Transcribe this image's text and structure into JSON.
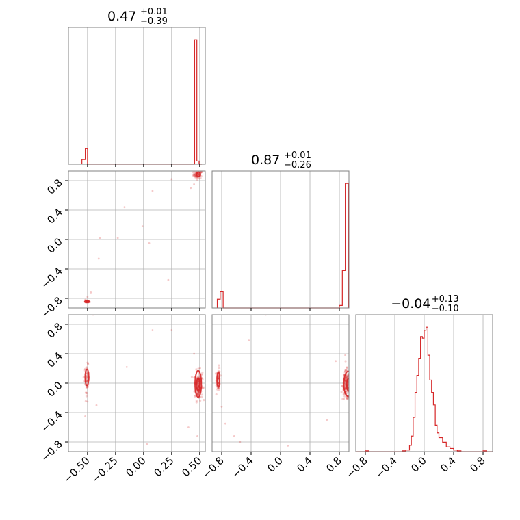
{
  "colors": {
    "series": "#d62728",
    "grid": "#b0b0b0",
    "frame": "#808080"
  },
  "chart_data": {
    "type": "corner",
    "variables": [
      "param_0",
      "param_1",
      "param_2"
    ],
    "titles": [
      {
        "value": "0.47",
        "plus": "+0.01",
        "minus": "−0.39"
      },
      {
        "value": "0.87",
        "plus": "+0.01",
        "minus": "−0.26"
      },
      {
        "value": "−0.04",
        "plus": "+0.13",
        "minus": "−0.10"
      }
    ],
    "ranges": [
      [
        -0.67,
        0.55
      ],
      [
        -0.93,
        0.93
      ],
      [
        -0.93,
        0.93
      ]
    ],
    "ticks": {
      "param_0": {
        "values": [
          -0.5,
          -0.25,
          0.0,
          0.25,
          0.5
        ],
        "labels": [
          "−0.50",
          "−0.25",
          "0.00",
          "0.25",
          "0.50"
        ]
      },
      "param_1": {
        "values": [
          -0.8,
          -0.4,
          0.0,
          0.4,
          0.8
        ],
        "labels": [
          "−0.8",
          "−0.4",
          "0.0",
          "0.4",
          "0.8"
        ]
      },
      "param_2": {
        "values": [
          -0.8,
          -0.4,
          0.0,
          0.4,
          0.8
        ],
        "labels": [
          "−0.8",
          "−0.4",
          "0.0",
          "0.4",
          "0.8"
        ]
      }
    },
    "grid": true,
    "histograms": [
      {
        "variable": "param_0",
        "edges": [
          -0.55,
          -0.52,
          -0.5,
          -0.48,
          0.43,
          0.455,
          0.475,
          0.495,
          0.52
        ],
        "counts": [
          3,
          10,
          0,
          0,
          0,
          80,
          2,
          0,
          0
        ]
      },
      {
        "variable": "param_1",
        "edges": [
          -0.86,
          -0.82,
          -0.78,
          0.76,
          0.8,
          0.84,
          0.88,
          0.92
        ],
        "counts": [
          7,
          13,
          0,
          0,
          2,
          30,
          100,
          0
        ]
      },
      {
        "variable": "param_2",
        "edges": [
          -0.93,
          -0.8,
          -0.75,
          -0.3,
          -0.25,
          -0.2,
          -0.175,
          -0.15,
          -0.125,
          -0.1,
          -0.075,
          -0.05,
          -0.025,
          0.0,
          0.025,
          0.05,
          0.075,
          0.1,
          0.125,
          0.15,
          0.175,
          0.2,
          0.25,
          0.3,
          0.35,
          0.4,
          0.45,
          0.5,
          0.8,
          0.85,
          0.93
        ],
        "counts": [
          0,
          0.5,
          0,
          0.5,
          1,
          4,
          10,
          22,
          38,
          49,
          60,
          74,
          73,
          78,
          80,
          62,
          46,
          38,
          30,
          17,
          12,
          9,
          6,
          3,
          2,
          1,
          0.5,
          0,
          0.5,
          0
        ]
      }
    ],
    "scatter": [
      {
        "x": "param_0",
        "y": "param_1",
        "clusters": [
          {
            "cx": 0.485,
            "cy": 0.88,
            "sx": 0.02,
            "sy": 0.025,
            "n": 60
          },
          {
            "cx": -0.505,
            "cy": -0.845,
            "sx": 0.012,
            "sy": 0.008,
            "n": 30
          }
        ],
        "outliers": [
          [
            -0.5,
            -0.78
          ],
          [
            -0.52,
            -0.82
          ],
          [
            -0.47,
            -0.72
          ],
          [
            0.08,
            0.66
          ],
          [
            0.25,
            0.82
          ],
          [
            -0.17,
            0.44
          ],
          [
            -0.23,
            0.02
          ],
          [
            -0.4,
            -0.26
          ],
          [
            0.05,
            -0.05
          ],
          [
            0.45,
            0.75
          ],
          [
            0.42,
            0.7
          ],
          [
            -0.01,
            0.18
          ],
          [
            0.22,
            -0.55
          ],
          [
            -0.39,
            0.02
          ]
        ],
        "contours": [
          {
            "cx": 0.49,
            "cy": 0.885,
            "rx": 0.017,
            "ry": 0.03
          },
          {
            "cx": -0.505,
            "cy": -0.845,
            "rx": 0.02,
            "ry": 0.012
          }
        ]
      },
      {
        "x": "param_0",
        "y": "param_2",
        "clusters": [
          {
            "cx": 0.49,
            "cy": -0.03,
            "sx": 0.017,
            "sy": 0.1,
            "n": 150
          },
          {
            "cx": -0.505,
            "cy": 0.06,
            "sx": 0.01,
            "sy": 0.09,
            "n": 50
          }
        ],
        "outliers": [
          [
            -0.45,
            0.93
          ],
          [
            -0.15,
            0.22
          ],
          [
            0.08,
            0.72
          ],
          [
            0.03,
            -0.83
          ],
          [
            -0.52,
            -0.45
          ],
          [
            -0.5,
            0.28
          ],
          [
            0.45,
            0.4
          ],
          [
            0.4,
            -0.6
          ],
          [
            -0.42,
            -0.3
          ],
          [
            0.25,
            0.72
          ],
          [
            0.48,
            -0.72
          ],
          [
            -0.5,
            -0.25
          ]
        ],
        "contours": [
          {
            "cx": 0.487,
            "cy": -0.01,
            "rx": 0.028,
            "ry": 0.18
          },
          {
            "cx": 0.487,
            "cy": -0.02,
            "rx": 0.014,
            "ry": 0.09
          },
          {
            "cx": -0.505,
            "cy": 0.08,
            "rx": 0.016,
            "ry": 0.11
          }
        ]
      },
      {
        "x": "param_1",
        "y": "param_2",
        "clusters": [
          {
            "cx": 0.895,
            "cy": -0.03,
            "sx": 0.025,
            "sy": 0.1,
            "n": 150
          },
          {
            "cx": -0.845,
            "cy": 0.05,
            "sx": 0.012,
            "sy": 0.08,
            "n": 55
          }
        ],
        "outliers": [
          [
            -0.8,
            -0.32
          ],
          [
            -0.75,
            -0.55
          ],
          [
            -0.63,
            -0.72
          ],
          [
            -0.2,
            0.93
          ],
          [
            -0.43,
            0.58
          ],
          [
            0.63,
            -0.5
          ],
          [
            0.88,
            0.38
          ],
          [
            -0.55,
            -0.8
          ],
          [
            0.75,
            0.3
          ],
          [
            0.1,
            -0.85
          ]
        ],
        "contours": [
          {
            "cx": 0.92,
            "cy": -0.01,
            "rx": 0.06,
            "ry": 0.17
          },
          {
            "cx": 0.93,
            "cy": -0.02,
            "rx": 0.03,
            "ry": 0.09
          },
          {
            "cx": -0.845,
            "cy": 0.05,
            "rx": 0.018,
            "ry": 0.1
          }
        ]
      }
    ]
  }
}
